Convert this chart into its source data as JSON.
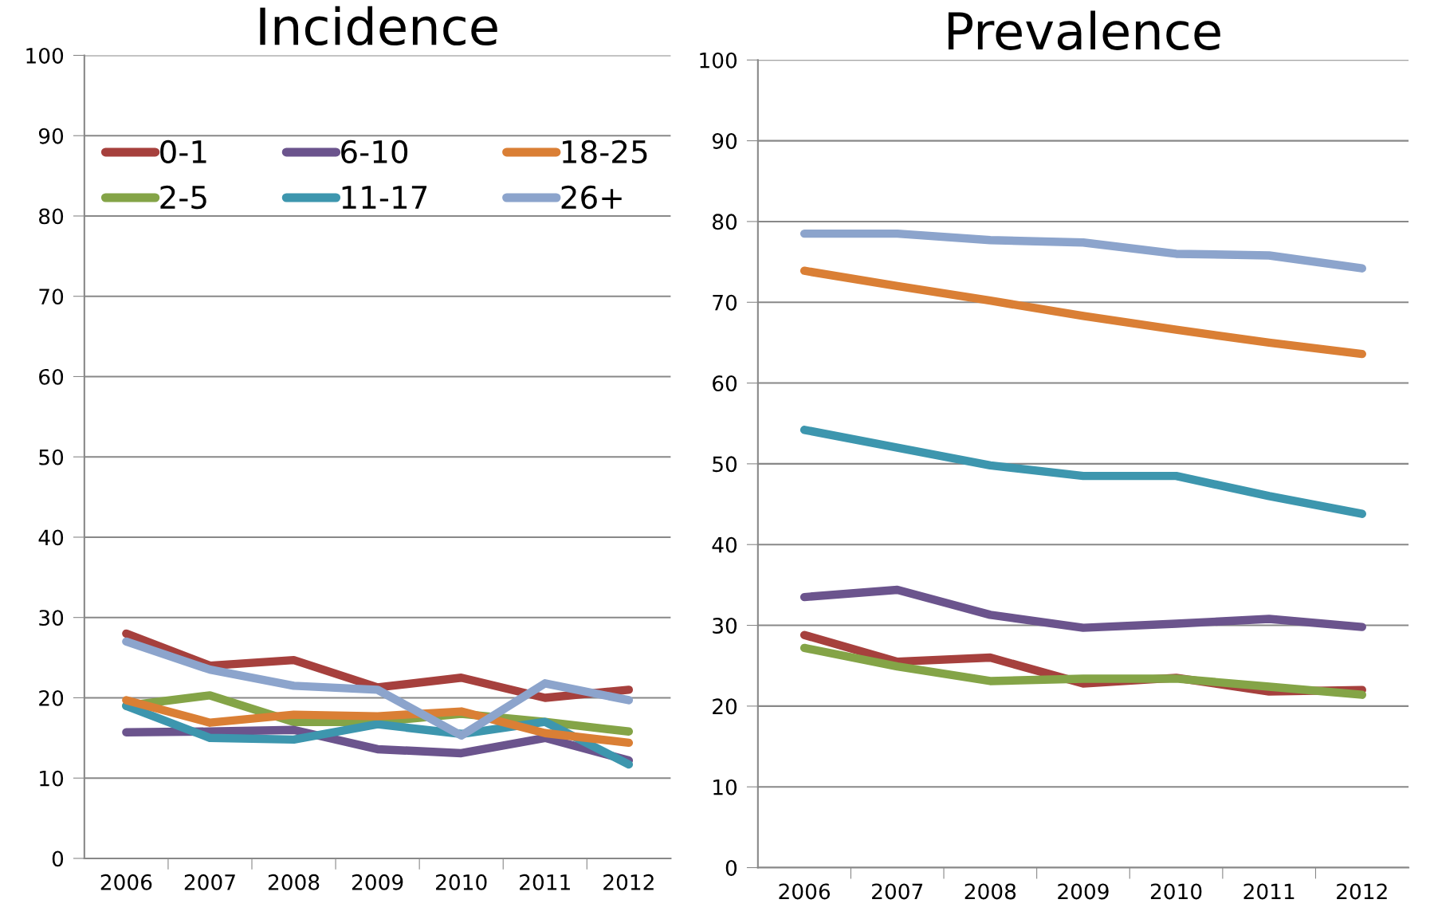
{
  "chart_data": [
    {
      "type": "line",
      "title": "Incidence",
      "categories": [
        "2006",
        "2007",
        "2008",
        "2009",
        "2010",
        "2011",
        "2012"
      ],
      "ylim": [
        0,
        100
      ],
      "yticks": [
        0,
        10,
        20,
        30,
        40,
        50,
        60,
        70,
        80,
        90,
        100
      ],
      "grid": "y",
      "legend": "top",
      "marker": "none",
      "line_style": "solid",
      "series": [
        {
          "name": "0-1",
          "color": "#a6403d",
          "values": [
            28,
            24,
            24.7,
            21.3,
            22.5,
            20,
            21
          ]
        },
        {
          "name": "2-5",
          "color": "#84a447",
          "values": [
            19,
            20.3,
            17,
            17,
            18,
            17,
            15.8
          ]
        },
        {
          "name": "6-10",
          "color": "#6b548d",
          "values": [
            15.7,
            15.8,
            16,
            13.6,
            13.1,
            15,
            12.2
          ]
        },
        {
          "name": "11-17",
          "color": "#3d96ae",
          "values": [
            19,
            15,
            14.8,
            16.7,
            15.5,
            17,
            11.7
          ]
        },
        {
          "name": "18-25",
          "color": "#da7f35",
          "values": [
            19.7,
            16.9,
            17.9,
            17.7,
            18.3,
            15.6,
            14.4
          ]
        },
        {
          "name": "26+",
          "color": "#8ca4cc",
          "values": [
            27,
            23.5,
            21.5,
            21,
            15.3,
            21.8,
            19.7
          ]
        }
      ]
    },
    {
      "type": "line",
      "title": "Prevalence",
      "categories": [
        "2006",
        "2007",
        "2008",
        "2009",
        "2010",
        "2011",
        "2012"
      ],
      "ylim": [
        0,
        100
      ],
      "yticks": [
        0,
        10,
        20,
        30,
        40,
        50,
        60,
        70,
        80,
        90,
        100
      ],
      "grid": "y",
      "marker": "none",
      "line_style": "solid",
      "series": [
        {
          "color": "#a6403d",
          "values": [
            28.8,
            25.5,
            26,
            22.8,
            23.5,
            21.8,
            22
          ]
        },
        {
          "color": "#84a447",
          "values": [
            27.2,
            24.9,
            23.1,
            23.4,
            23.4,
            22.4,
            21.4
          ]
        },
        {
          "color": "#6b548d",
          "values": [
            33.5,
            34.4,
            31.3,
            29.7,
            30.2,
            30.8,
            29.8
          ]
        },
        {
          "color": "#3d96ae",
          "values": [
            54.2,
            52,
            49.8,
            48.5,
            48.5,
            46,
            43.8
          ]
        },
        {
          "color": "#da7f35",
          "values": [
            73.9,
            72,
            70.2,
            68.3,
            66.6,
            65,
            63.6
          ]
        },
        {
          "color": "#8ca4cc",
          "values": [
            78.5,
            78.5,
            77.7,
            77.4,
            76,
            75.8,
            74.2
          ]
        }
      ]
    }
  ]
}
